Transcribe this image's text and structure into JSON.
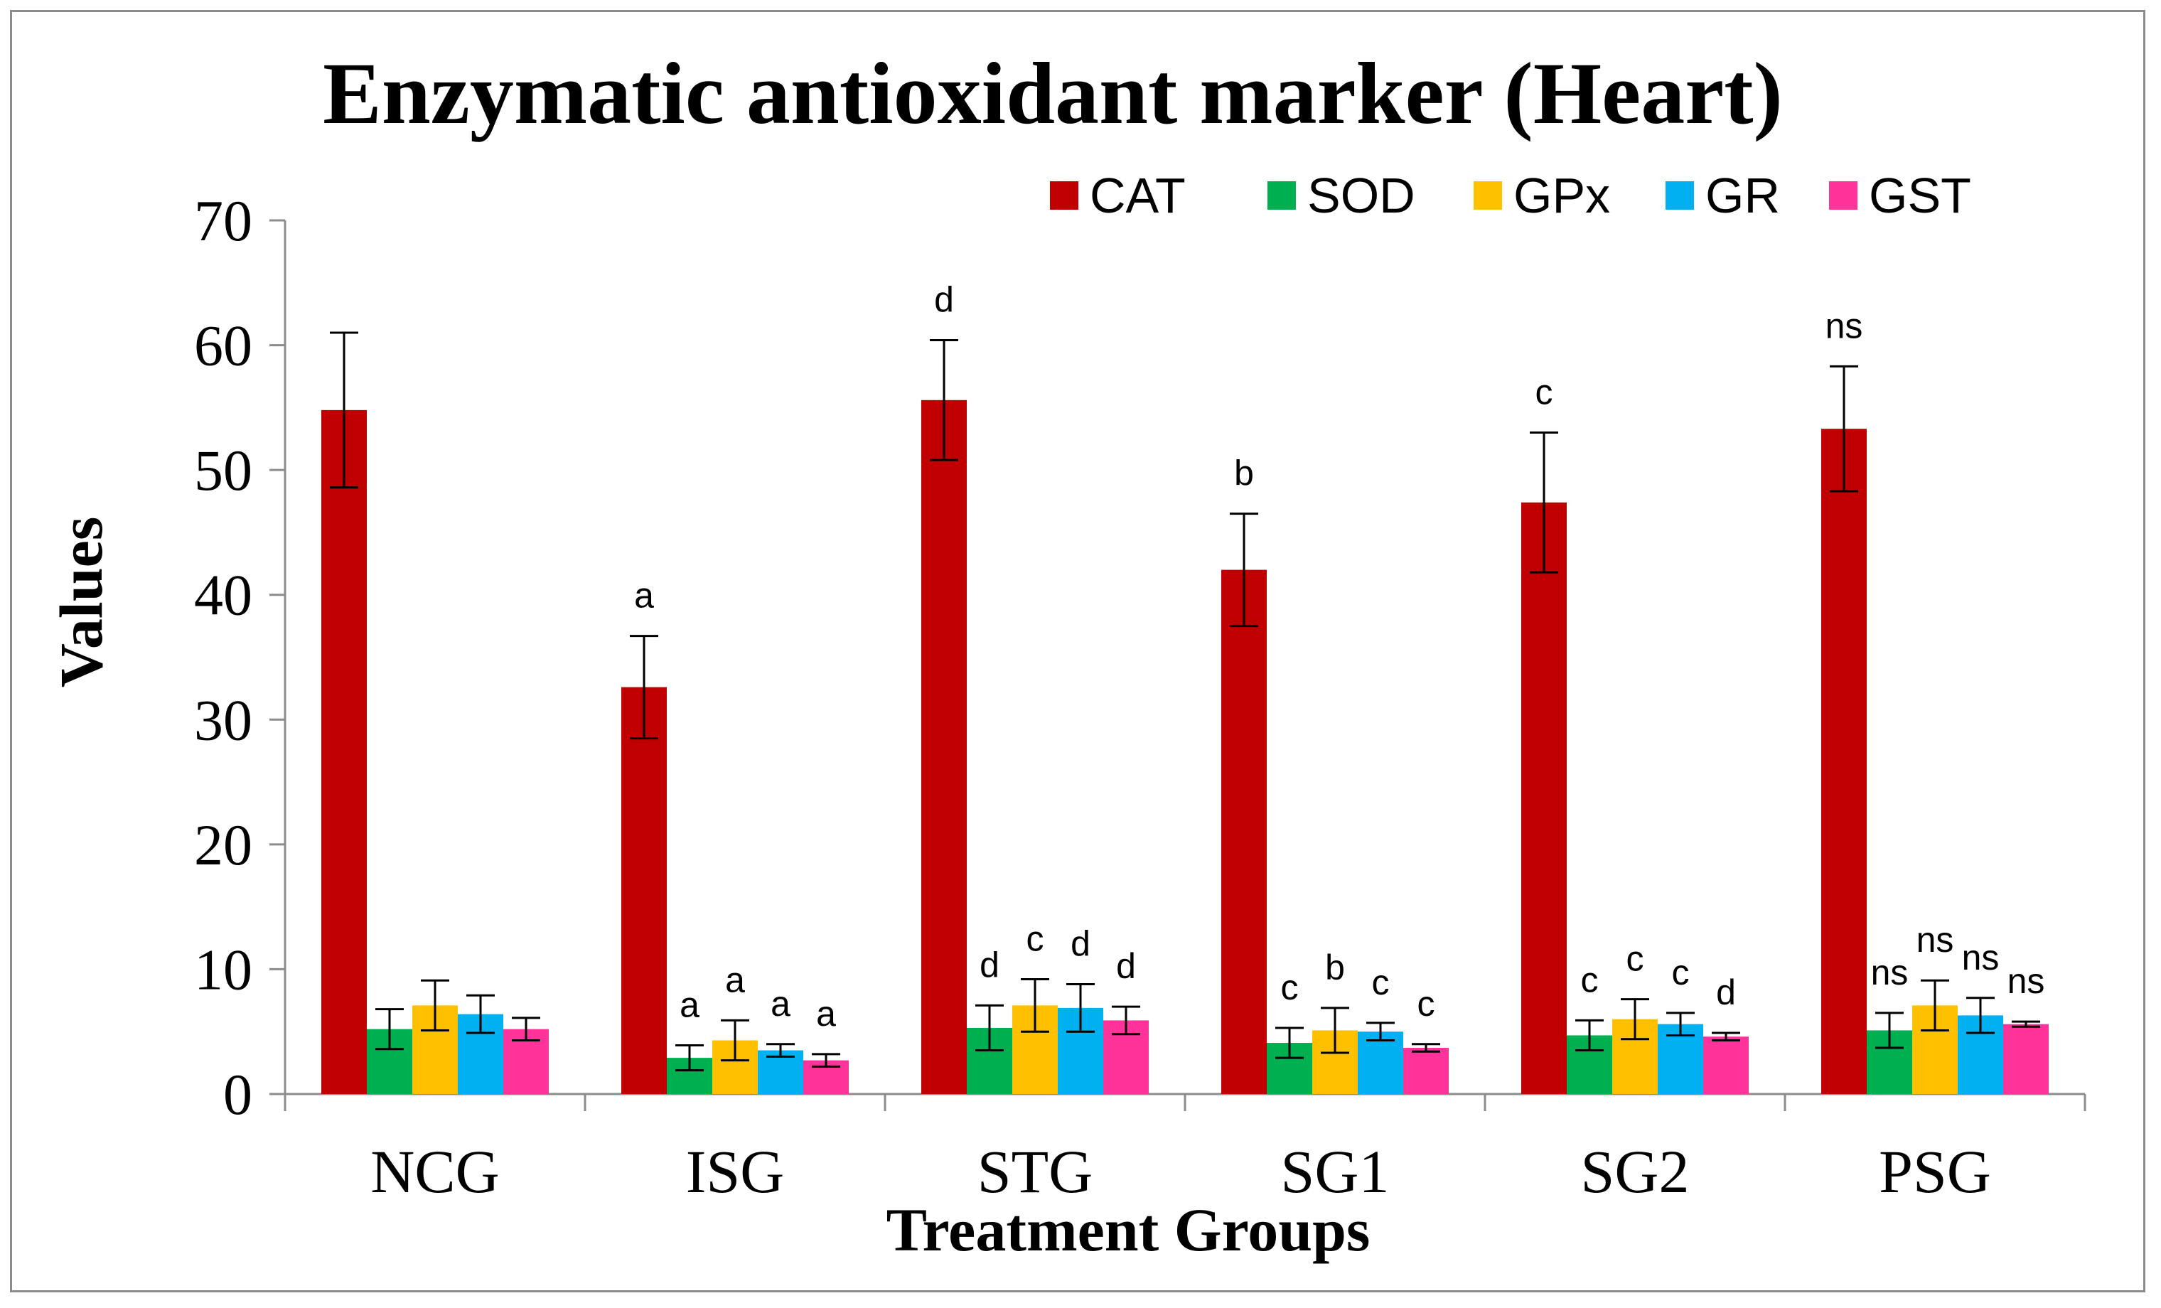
{
  "chart_data": {
    "type": "bar",
    "title": "Enzymatic antioxidant marker (Heart)",
    "xlabel": "Treatment Groups",
    "ylabel": "Values",
    "ylim": [
      0,
      70
    ],
    "yticks": [
      "0",
      "10",
      "20",
      "30",
      "40",
      "50",
      "60",
      "70"
    ],
    "legend_position": "top-right",
    "categories": [
      "NCG",
      "ISG",
      "STG",
      "SG1",
      "SG2",
      "PSG"
    ],
    "series": [
      {
        "name": "CAT",
        "color": "#c00000",
        "values": [
          54.8,
          32.6,
          55.6,
          42.0,
          47.4,
          53.3
        ],
        "errors": [
          6.2,
          4.1,
          4.8,
          4.5,
          5.6,
          5.0
        ],
        "labels": [
          "",
          "a",
          "d",
          "b",
          "c",
          "ns"
        ]
      },
      {
        "name": "SOD",
        "color": "#00b050",
        "values": [
          5.2,
          2.9,
          5.3,
          4.1,
          4.7,
          5.1
        ],
        "errors": [
          1.6,
          1.0,
          1.8,
          1.2,
          1.2,
          1.4
        ],
        "labels": [
          "",
          "a",
          "d",
          "c",
          "c",
          "ns"
        ]
      },
      {
        "name": "GPx",
        "color": "#ffc000",
        "values": [
          7.1,
          4.3,
          7.1,
          5.1,
          6.0,
          7.1
        ],
        "errors": [
          2.0,
          1.6,
          2.1,
          1.8,
          1.6,
          2.0
        ],
        "labels": [
          "",
          "a",
          "c",
          "b",
          "c",
          "ns"
        ]
      },
      {
        "name": "GR",
        "color": "#00b0f0",
        "values": [
          6.4,
          3.5,
          6.9,
          5.0,
          5.6,
          6.3
        ],
        "errors": [
          1.5,
          0.5,
          1.9,
          0.7,
          0.9,
          1.4
        ],
        "labels": [
          "",
          "a",
          "d",
          "c",
          "c",
          "ns"
        ]
      },
      {
        "name": "GST",
        "color": "#ff3399",
        "values": [
          5.2,
          2.7,
          5.9,
          3.7,
          4.6,
          5.6
        ],
        "errors": [
          0.9,
          0.5,
          1.1,
          0.3,
          0.3,
          0.2
        ],
        "labels": [
          "",
          "a",
          "d",
          "c",
          "d",
          "ns"
        ]
      }
    ]
  }
}
